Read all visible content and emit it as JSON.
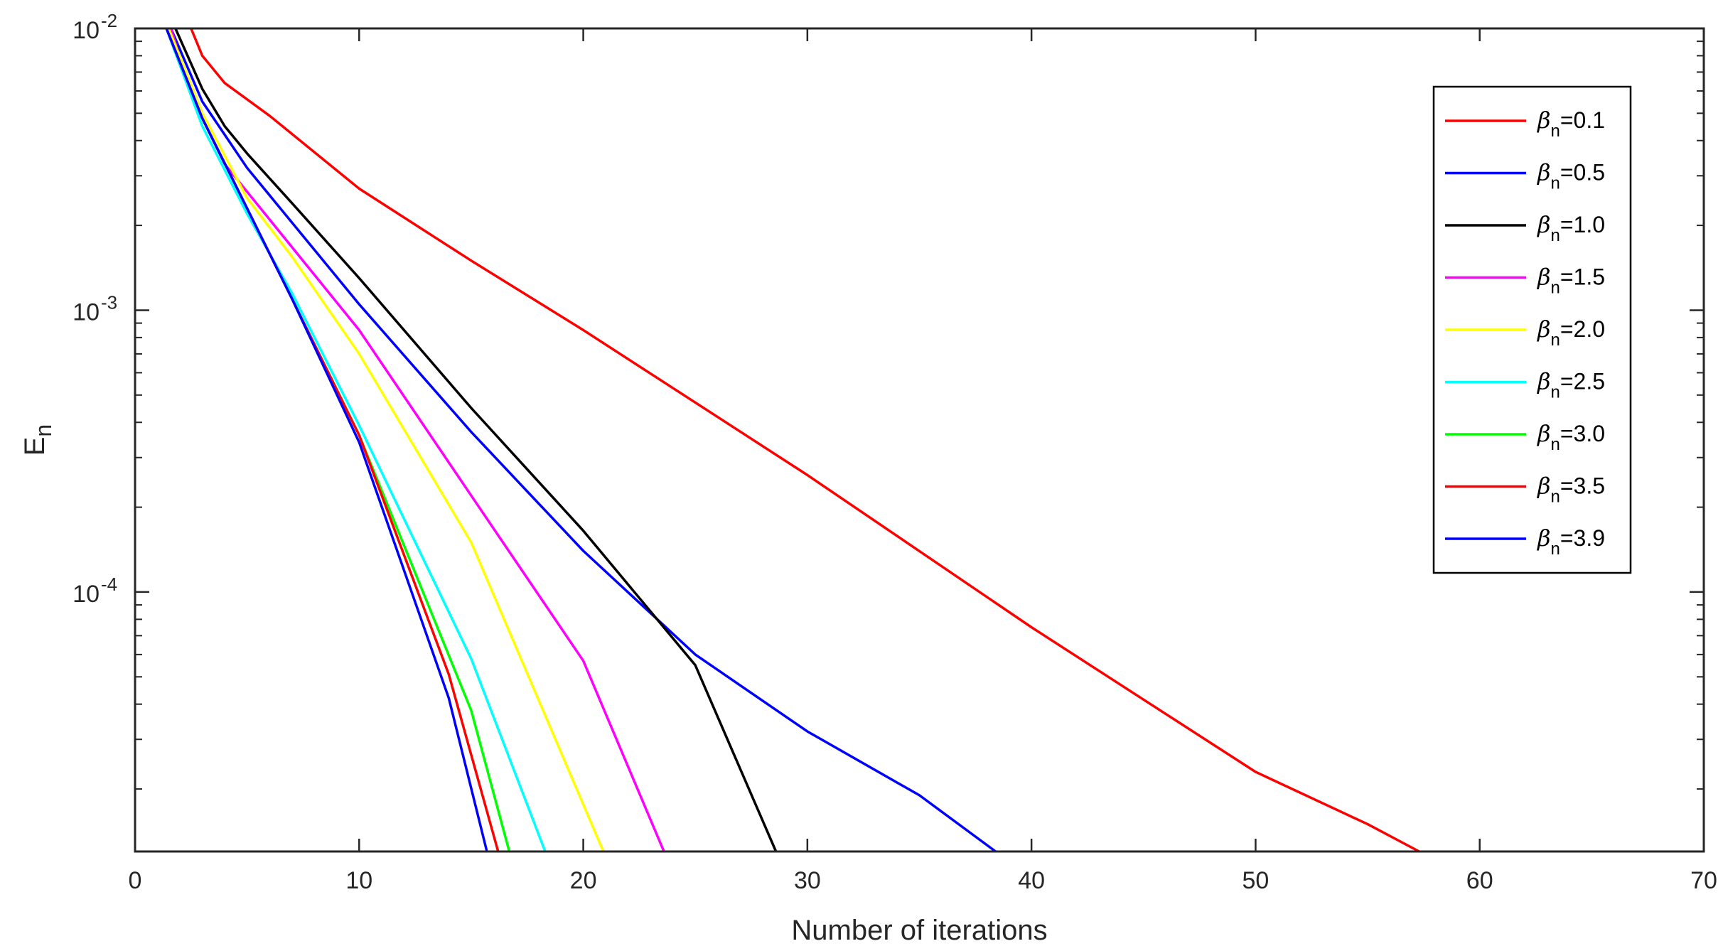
{
  "chart_data": {
    "type": "line",
    "title": "",
    "xlabel": "Number of iterations",
    "ylabel": {
      "base": "E",
      "sub": "n"
    },
    "xlim": [
      0,
      70
    ],
    "ylim": [
      1.2e-05,
      0.01
    ],
    "yscale": "log",
    "xticks": [
      0,
      10,
      20,
      30,
      40,
      50,
      60,
      70
    ],
    "yticks": [
      {
        "value": 0.01,
        "base": "10",
        "exp": "-2"
      },
      {
        "value": 0.001,
        "base": "10",
        "exp": "-3"
      },
      {
        "value": 0.0001,
        "base": "10",
        "exp": "-4"
      }
    ],
    "grid": false,
    "legend_position": "top-right",
    "legend_symbol": "β",
    "legend_sub": "n",
    "series": [
      {
        "name": "=0.1",
        "color": "#ff0000",
        "x": [
          2.5,
          3,
          4,
          6,
          10,
          15,
          20,
          30,
          40,
          50,
          55,
          57.3
        ],
        "y": [
          0.01,
          0.008,
          0.0064,
          0.0049,
          0.0027,
          0.0015,
          0.00085,
          0.00026,
          7.5e-05,
          2.3e-05,
          1.5e-05,
          1.2e-05
        ]
      },
      {
        "name": "=0.5",
        "color": "#0000ff",
        "x": [
          1.6,
          3,
          5,
          10,
          15,
          20,
          25,
          30,
          35,
          38.4
        ],
        "y": [
          0.01,
          0.0055,
          0.0032,
          0.00105,
          0.00037,
          0.00014,
          6e-05,
          3.2e-05,
          1.9e-05,
          1.2e-05
        ]
      },
      {
        "name": "=1.0",
        "color": "#000000",
        "x": [
          1.8,
          2.5,
          3,
          4,
          5,
          7,
          10,
          15,
          20,
          25,
          28.6
        ],
        "y": [
          0.01,
          0.0075,
          0.0061,
          0.0045,
          0.0036,
          0.0024,
          0.0013,
          0.00045,
          0.000165,
          5.5e-05,
          1.2e-05
        ]
      },
      {
        "name": "=1.5",
        "color": "#ff00ff",
        "x": [
          1.6,
          2.5,
          4,
          6,
          10,
          15,
          20,
          23.6
        ],
        "y": [
          0.01,
          0.0058,
          0.0033,
          0.0021,
          0.00085,
          0.00022,
          5.7e-05,
          1.2e-05
        ]
      },
      {
        "name": "=2.0",
        "color": "#ffff00",
        "x": [
          1.5,
          3,
          5,
          7,
          10,
          15,
          20.9
        ],
        "y": [
          0.01,
          0.005,
          0.0025,
          0.00155,
          0.0007,
          0.00015,
          1.2e-05
        ]
      },
      {
        "name": "=2.5",
        "color": "#00ffff",
        "x": [
          1.4,
          3,
          5,
          7,
          10,
          15,
          18.3
        ],
        "y": [
          0.01,
          0.0045,
          0.0022,
          0.00115,
          0.00039,
          5.8e-05,
          1.2e-05
        ]
      },
      {
        "name": "=3.0",
        "color": "#00ff00",
        "x": [
          1.4,
          3,
          5,
          7,
          10,
          15,
          16.7
        ],
        "y": [
          0.01,
          0.0048,
          0.0023,
          0.0011,
          0.00036,
          3.8e-05,
          1.2e-05
        ]
      },
      {
        "name": "=3.5",
        "color": "#ff0000",
        "x": [
          1.4,
          3,
          5,
          7,
          10,
          14,
          16.2
        ],
        "y": [
          0.01,
          0.0048,
          0.0023,
          0.0011,
          0.00036,
          5.1e-05,
          1.2e-05
        ]
      },
      {
        "name": "=3.9",
        "color": "#0000ff",
        "x": [
          1.4,
          3,
          5,
          7,
          10,
          14,
          15.7
        ],
        "y": [
          0.01,
          0.0048,
          0.0023,
          0.0011,
          0.00034,
          4.2e-05,
          1.2e-05
        ]
      }
    ]
  }
}
